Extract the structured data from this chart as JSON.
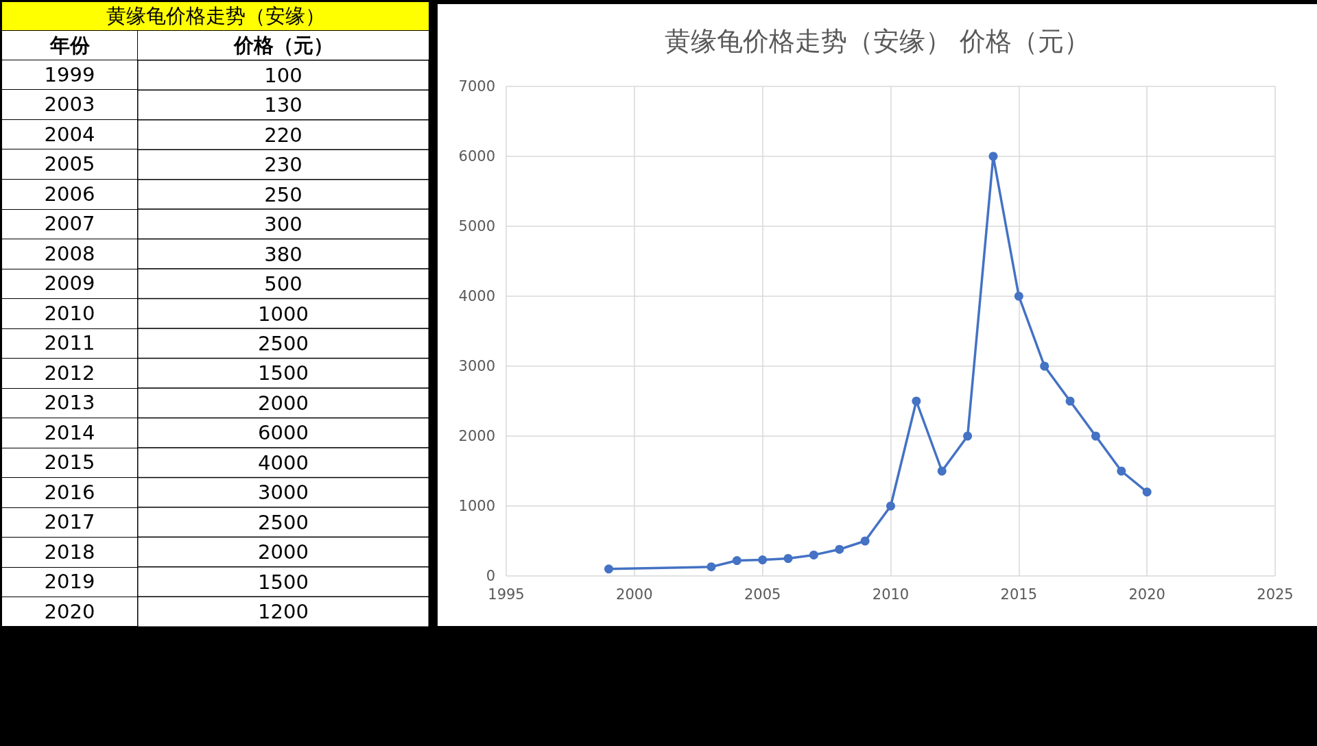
{
  "chart_data": [
    {
      "type": "heatmap",
      "title": "黄缘龟价格走势（安缘）",
      "ylabel": "年份",
      "categories": [
        "价格（元）"
      ],
      "y_categories": [
        "1999",
        "2003",
        "2004",
        "2005",
        "2006",
        "2007",
        "2008",
        "2009",
        "2010",
        "2011",
        "2012",
        "2013",
        "2014",
        "2015",
        "2016",
        "2017",
        "2018",
        "2019",
        "2020"
      ],
      "cells": [
        [
          100
        ],
        [
          130
        ],
        [
          220
        ],
        [
          230
        ],
        [
          250
        ],
        [
          300
        ],
        [
          380
        ],
        [
          500
        ],
        [
          1000
        ],
        [
          2500
        ],
        [
          1500
        ],
        [
          2000
        ],
        [
          6000
        ],
        [
          4000
        ],
        [
          3000
        ],
        [
          2500
        ],
        [
          2000
        ],
        [
          1500
        ],
        [
          1200
        ]
      ],
      "data_labels": true
    },
    {
      "type": "line",
      "title": "黄缘龟价格走势（安缘） 价格（元）",
      "x": [
        1999,
        2003,
        2004,
        2005,
        2006,
        2007,
        2008,
        2009,
        2010,
        2011,
        2012,
        2013,
        2014,
        2015,
        2016,
        2017,
        2018,
        2019,
        2020
      ],
      "series": [
        {
          "color": "#4472c4",
          "values": [
            100,
            130,
            220,
            230,
            250,
            300,
            380,
            500,
            1000,
            2500,
            1500,
            2000,
            6000,
            4000,
            3000,
            2500,
            2000,
            1500,
            1200
          ]
        }
      ],
      "xlim": [
        1995,
        2025
      ],
      "xticks": [
        1995,
        2000,
        2005,
        2010,
        2015,
        2020,
        2025
      ],
      "ylim": [
        0,
        7000
      ],
      "yticks": [
        0,
        1000,
        2000,
        3000,
        4000,
        5000,
        6000,
        7000
      ],
      "grid": true,
      "marker": "circle",
      "line_style": "solid"
    }
  ]
}
